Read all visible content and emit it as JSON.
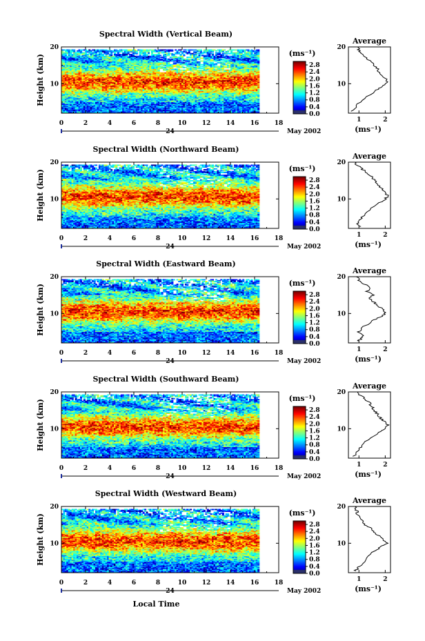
{
  "figure": {
    "xlabel": "Local Time",
    "date_left": "24",
    "date_right": "May 2002",
    "x_ticks": [
      "0",
      "2",
      "4",
      "6",
      "8",
      "10",
      "12",
      "14",
      "16",
      "18"
    ],
    "y_ticks": [
      "10",
      "20"
    ],
    "ylabel": "Height (km)",
    "colorbar_unit": "(ms⁻¹)",
    "colorbar_ticks": [
      "0.0",
      "0.4",
      "0.8",
      "1.2",
      "1.6",
      "2.0",
      "2.4",
      "2.8"
    ],
    "avg_title": "Average",
    "avg_xlabel": "(ms⁻¹)",
    "avg_x_ticks": [
      "1",
      "2"
    ]
  },
  "panels": [
    {
      "title": "Spectral Width (Vertical Beam)"
    },
    {
      "title": "Spectral Width (Northward Beam)"
    },
    {
      "title": "Spectral Width (Eastward Beam)"
    },
    {
      "title": "Spectral Width (Southward Beam)"
    },
    {
      "title": "Spectral Width (Westward Beam)"
    }
  ],
  "chart_data": [
    {
      "type": "heatmap",
      "title": "Spectral Width (Vertical Beam)",
      "xlabel": "Local Time",
      "ylabel": "Height (km)",
      "xlim": [
        0,
        18
      ],
      "ylim": [
        2,
        20
      ],
      "clim": [
        0,
        3.0
      ],
      "colorbar_label": "(ms⁻¹)",
      "data_extent_hours": [
        0,
        16.3
      ],
      "average_profile": {
        "xlabel": "(ms⁻¹)",
        "xlim": [
          0.6,
          2.2
        ],
        "height_km": [
          2.5,
          4,
          6,
          8,
          9,
          10,
          11,
          12,
          13,
          14,
          15,
          16,
          17,
          18,
          19,
          20
        ],
        "width_ms": [
          0.75,
          0.9,
          1.2,
          1.6,
          1.85,
          2.0,
          2.1,
          1.95,
          1.8,
          1.7,
          1.55,
          1.45,
          1.3,
          1.15,
          1.0,
          0.95
        ]
      }
    },
    {
      "type": "heatmap",
      "title": "Spectral Width (Northward Beam)",
      "xlabel": "Local Time",
      "ylabel": "Height (km)",
      "xlim": [
        0,
        18
      ],
      "ylim": [
        2,
        20
      ],
      "clim": [
        0,
        3.0
      ],
      "colorbar_label": "(ms⁻¹)",
      "data_extent_hours": [
        0,
        16.3
      ],
      "average_profile": {
        "xlabel": "(ms⁻¹)",
        "xlim": [
          0.6,
          2.2
        ],
        "height_km": [
          2.5,
          3,
          4,
          5,
          7,
          9,
          10,
          11,
          12,
          13,
          14,
          15,
          16,
          17,
          18,
          19,
          20
        ],
        "width_ms": [
          1.05,
          0.9,
          1.0,
          1.1,
          1.4,
          1.8,
          2.0,
          2.1,
          1.95,
          1.85,
          1.7,
          1.6,
          1.5,
          1.35,
          1.15,
          0.95,
          0.85
        ]
      }
    },
    {
      "type": "heatmap",
      "title": "Spectral Width (Eastward Beam)",
      "xlabel": "Local Time",
      "ylabel": "Height (km)",
      "xlim": [
        0,
        18
      ],
      "ylim": [
        2,
        20
      ],
      "clim": [
        0,
        3.0
      ],
      "colorbar_label": "(ms⁻¹)",
      "data_extent_hours": [
        0,
        16.3
      ],
      "average_profile": {
        "xlabel": "(ms⁻¹)",
        "xlim": [
          0.6,
          2.2
        ],
        "height_km": [
          2.5,
          3,
          4,
          5,
          6,
          8,
          9,
          10,
          11,
          12,
          13,
          14,
          15,
          16,
          17,
          18,
          19,
          20
        ],
        "width_ms": [
          0.95,
          1.05,
          1.2,
          1.0,
          1.1,
          1.5,
          1.8,
          2.0,
          1.9,
          1.75,
          1.6,
          1.4,
          1.55,
          1.3,
          1.45,
          1.2,
          1.0,
          0.9
        ]
      }
    },
    {
      "type": "heatmap",
      "title": "Spectral Width (Southward Beam)",
      "xlabel": "Local Time",
      "ylabel": "Height (km)",
      "xlim": [
        0,
        18
      ],
      "ylim": [
        2,
        20
      ],
      "clim": [
        0,
        3.0
      ],
      "colorbar_label": "(ms⁻¹)",
      "data_extent_hours": [
        0,
        16.3
      ],
      "average_profile": {
        "xlabel": "(ms⁻¹)",
        "xlim": [
          0.6,
          2.2
        ],
        "height_km": [
          2.5,
          4,
          5,
          7,
          9,
          10,
          11,
          12,
          13,
          14,
          15,
          16,
          17,
          18,
          19,
          20
        ],
        "width_ms": [
          0.8,
          0.95,
          1.05,
          1.35,
          1.75,
          2.0,
          2.1,
          1.95,
          1.8,
          1.7,
          1.6,
          1.5,
          1.4,
          1.25,
          1.05,
          0.95
        ]
      }
    },
    {
      "type": "heatmap",
      "title": "Spectral Width (Westward Beam)",
      "xlabel": "Local Time",
      "ylabel": "Height (km)",
      "xlim": [
        0,
        18
      ],
      "ylim": [
        2,
        20
      ],
      "clim": [
        0,
        3.0
      ],
      "colorbar_label": "(ms⁻¹)",
      "data_extent_hours": [
        0,
        16.3
      ],
      "average_profile": {
        "xlabel": "(ms⁻¹)",
        "xlim": [
          0.6,
          2.2
        ],
        "height_km": [
          2.5,
          3,
          4,
          6,
          8,
          9,
          10,
          11,
          12,
          13,
          14,
          15,
          16,
          17,
          18,
          19,
          20
        ],
        "width_ms": [
          0.85,
          0.95,
          1.05,
          1.3,
          1.6,
          1.85,
          2.05,
          1.9,
          1.75,
          1.6,
          1.45,
          1.25,
          1.15,
          1.0,
          0.95,
          0.9,
          0.85
        ]
      }
    }
  ]
}
